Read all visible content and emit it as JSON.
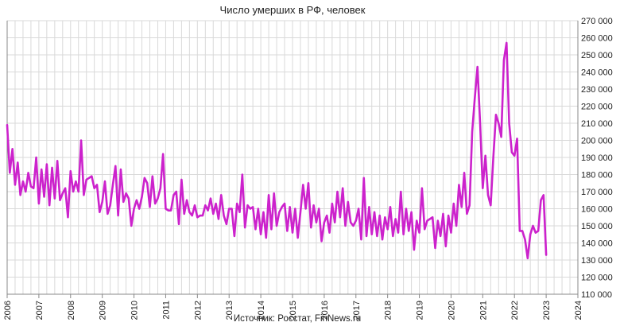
{
  "chart_data": {
    "type": "line",
    "title": "Число умерших в РФ, человек",
    "source": "Источник: Росстат, FinNews.ru",
    "xlabel": "",
    "ylabel": "",
    "x_tick_labels": [
      "2006",
      "2007",
      "2008",
      "2009",
      "2010",
      "2011",
      "2012",
      "2013",
      "2014",
      "2015",
      "2016",
      "2017",
      "2018",
      "2019",
      "2020",
      "2021",
      "2022",
      "2023",
      "2024"
    ],
    "y_tick_labels": [
      "110 000",
      "120 000",
      "130 000",
      "140 000",
      "150 000",
      "160 000",
      "170 000",
      "180 000",
      "190 000",
      "200 000",
      "210 000",
      "220 000",
      "230 000",
      "240 000",
      "250 000",
      "260 000",
      "270 000"
    ],
    "ylim": [
      110000,
      270000
    ],
    "xlim": [
      "2006-01",
      "2024-01"
    ],
    "grid": true,
    "line_color": "#cc22cc",
    "series": [
      {
        "start": "2006-01",
        "frequency": "monthly",
        "values": [
          209000,
          181000,
          195000,
          174000,
          187000,
          168000,
          176000,
          170000,
          181000,
          173000,
          172000,
          190000,
          163000,
          183000,
          167000,
          186000,
          162000,
          184000,
          166000,
          188000,
          165000,
          169000,
          172000,
          155000,
          182000,
          170000,
          176000,
          170000,
          200000,
          168000,
          177000,
          178000,
          179000,
          172000,
          174000,
          158000,
          164000,
          176000,
          157000,
          162000,
          174000,
          185000,
          156000,
          183000,
          164000,
          169000,
          166000,
          150000,
          160000,
          165000,
          160000,
          167000,
          178000,
          175000,
          161000,
          179000,
          163000,
          166000,
          172000,
          192000,
          160000,
          159000,
          159000,
          168000,
          170000,
          151000,
          177000,
          157000,
          165000,
          158000,
          156000,
          162000,
          155000,
          156000,
          156000,
          162000,
          159000,
          166000,
          157000,
          163000,
          154000,
          168000,
          156000,
          151000,
          160000,
          160000,
          144000,
          163000,
          158000,
          180000,
          149000,
          162000,
          160000,
          161000,
          148000,
          160000,
          145000,
          158000,
          143000,
          168000,
          148000,
          169000,
          150000,
          158000,
          161000,
          163000,
          147000,
          161000,
          146000,
          160000,
          143000,
          158000,
          174000,
          160000,
          175000,
          149000,
          162000,
          152000,
          160000,
          141000,
          152000,
          156000,
          146000,
          163000,
          152000,
          170000,
          155000,
          172000,
          150000,
          164000,
          152000,
          150000,
          153000,
          160000,
          142000,
          178000,
          144000,
          161000,
          145000,
          158000,
          144000,
          156000,
          142000,
          155000,
          148000,
          161000,
          144000,
          154000,
          146000,
          170000,
          145000,
          160000,
          147000,
          158000,
          136000,
          153000,
          146000,
          172000,
          148000,
          153000,
          154000,
          155000,
          137000,
          153000,
          144000,
          157000,
          138000,
          156000,
          146000,
          163000,
          150000,
          174000,
          161000,
          181000,
          157000,
          162000,
          205000,
          225000,
          243000,
          210000,
          172000,
          191000,
          168000,
          162000,
          190000,
          215000,
          210000,
          202000,
          247000,
          257000,
          210000,
          193000,
          191000,
          201000,
          147000,
          147000,
          142000,
          131000,
          145000,
          150000,
          146000,
          147000,
          165000,
          168000,
          133000
        ]
      }
    ]
  }
}
